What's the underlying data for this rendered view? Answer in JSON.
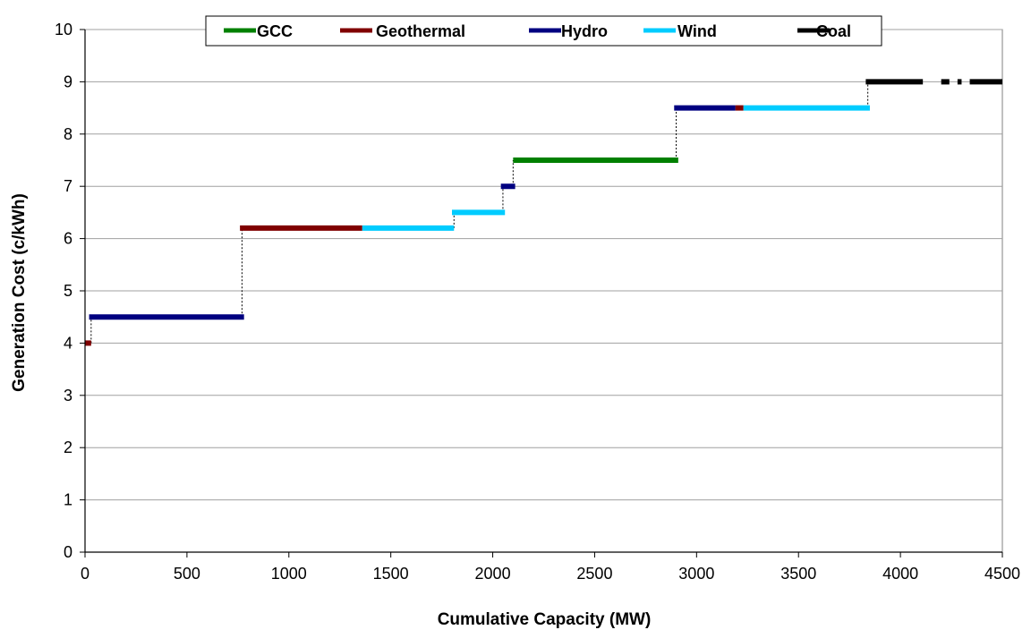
{
  "chart_data": {
    "type": "line",
    "title": "",
    "xlabel": "Cumulative Capacity (MW)",
    "ylabel": "Generation Cost (c/kWh)",
    "xlim": [
      0,
      4500
    ],
    "ylim": [
      0,
      10
    ],
    "xticks": [
      "0",
      "500",
      "1000",
      "1500",
      "2000",
      "2500",
      "3000",
      "3500",
      "4000",
      "4500"
    ],
    "yticks": [
      "0",
      "1",
      "2",
      "3",
      "4",
      "5",
      "6",
      "7",
      "8",
      "9",
      "10"
    ],
    "grid": true,
    "legend_position": "top-center",
    "series": [
      {
        "name": "GCC",
        "color": "#008000",
        "segments": [
          {
            "x0": 2100,
            "x1": 2910,
            "y": 7.5
          }
        ]
      },
      {
        "name": "Geothermal",
        "color": "#800000",
        "segments": [
          {
            "x0": 0,
            "x1": 30,
            "y": 4.0
          },
          {
            "x0": 760,
            "x1": 1360,
            "y": 6.2
          },
          {
            "x0": 3190,
            "x1": 3230,
            "y": 8.5
          }
        ]
      },
      {
        "name": "Hydro",
        "color": "#000080",
        "segments": [
          {
            "x0": 20,
            "x1": 780,
            "y": 4.5
          },
          {
            "x0": 2040,
            "x1": 2110,
            "y": 7.0
          },
          {
            "x0": 2890,
            "x1": 3190,
            "y": 8.5
          }
        ]
      },
      {
        "name": "Wind",
        "color": "#00CCFF",
        "segments": [
          {
            "x0": 1360,
            "x1": 1810,
            "y": 6.2
          },
          {
            "x0": 1800,
            "x1": 2060,
            "y": 6.5
          },
          {
            "x0": 3230,
            "x1": 3850,
            "y": 8.5
          }
        ]
      },
      {
        "name": "Coal",
        "color": "#000000",
        "segments": [
          {
            "x0": 3830,
            "x1": 4110,
            "y": 9.0
          },
          {
            "x0": 4200,
            "x1": 4240,
            "y": 9.0
          },
          {
            "x0": 4280,
            "x1": 4300,
            "y": 9.0
          },
          {
            "x0": 4340,
            "x1": 4500,
            "y": 9.0
          }
        ]
      }
    ],
    "step_connectors": [
      {
        "x": 30,
        "y0": 4.0,
        "y1": 4.5
      },
      {
        "x": 770,
        "y0": 4.5,
        "y1": 6.2
      },
      {
        "x": 1810,
        "y0": 6.2,
        "y1": 6.5
      },
      {
        "x": 2050,
        "y0": 6.5,
        "y1": 7.0
      },
      {
        "x": 2100,
        "y0": 7.0,
        "y1": 7.5
      },
      {
        "x": 2900,
        "y0": 7.5,
        "y1": 8.5
      },
      {
        "x": 3840,
        "y0": 8.5,
        "y1": 9.0
      }
    ]
  }
}
